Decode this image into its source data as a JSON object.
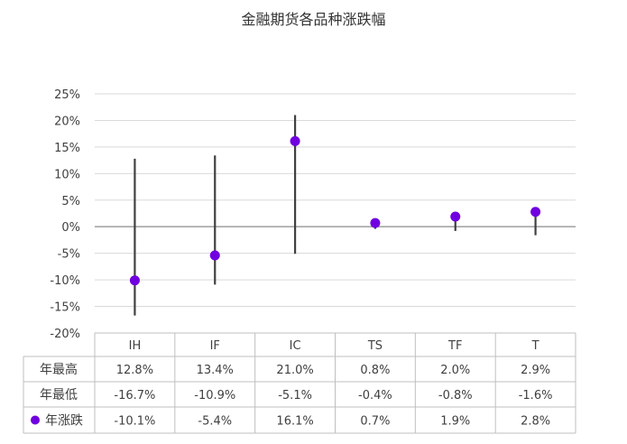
{
  "chart_data": {
    "type": "scatter",
    "title": "金融期货各品种涨跌幅",
    "categories": [
      "IH",
      "IF",
      "IC",
      "TS",
      "TF",
      "T"
    ],
    "ylim": [
      -20,
      25
    ],
    "yticks": [
      25,
      20,
      15,
      10,
      5,
      0,
      -5,
      -10,
      -15,
      -20
    ],
    "y_tick_labels": [
      "25%",
      "20%",
      "15%",
      "10%",
      "5%",
      "0%",
      "-5%",
      "-10%",
      "-15%",
      "-20%"
    ],
    "grid": true,
    "series": [
      {
        "name": "年最高",
        "values": [
          12.8,
          13.4,
          21.0,
          0.8,
          2.0,
          2.9
        ],
        "labels": [
          "12.8%",
          "13.4%",
          "21.0%",
          "0.8%",
          "2.0%",
          "2.9%"
        ]
      },
      {
        "name": "年最低",
        "values": [
          -16.7,
          -10.9,
          -5.1,
          -0.4,
          -0.8,
          -1.6
        ],
        "labels": [
          "-16.7%",
          "-10.9%",
          "-5.1%",
          "-0.4%",
          "-0.8%",
          "-1.6%"
        ]
      },
      {
        "name": "年涨跌",
        "values": [
          -10.1,
          -5.4,
          16.1,
          0.7,
          1.9,
          2.8
        ],
        "labels": [
          "-10.1%",
          "-5.4%",
          "16.1%",
          "0.7%",
          "1.9%",
          "2.8%"
        ]
      }
    ],
    "colors": {
      "marker": "#7000E0",
      "whisker": "#404040",
      "grid": "#D9D9D9",
      "zero_line": "#A6A6A6",
      "table_border": "#BFBFBF"
    }
  }
}
